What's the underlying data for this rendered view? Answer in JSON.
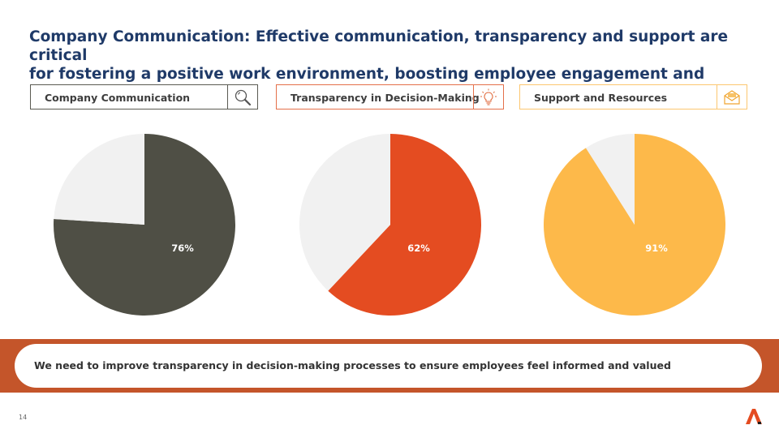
{
  "title": {
    "line1": "Company Communication: Effective communication, transparency and support are critical",
    "line2": "for fostering a positive work environment, boosting employee engagement and productivity"
  },
  "cards": [
    {
      "label": "Company Communication",
      "icon": "search-icon",
      "color": "#4f4f45",
      "border": "#5a5a52"
    },
    {
      "label": "Transparency in Decision-Making",
      "icon": "lightbulb-icon",
      "color": "#e44c21",
      "border": "#e4704a"
    },
    {
      "label": "Support and Resources",
      "icon": "envelope-icon",
      "color": "#fdb94a",
      "border": "#fcc770"
    }
  ],
  "chart_data": [
    {
      "type": "pie",
      "categories": [
        "",
        ""
      ],
      "values": [
        76,
        24
      ],
      "data_labels": [
        "76%"
      ],
      "colors": [
        "#4f4f45",
        "#f1f1f1"
      ]
    },
    {
      "type": "pie",
      "categories": [
        "",
        ""
      ],
      "values": [
        62,
        38
      ],
      "data_labels": [
        "62%"
      ],
      "colors": [
        "#e44c21",
        "#f1f1f1"
      ]
    },
    {
      "type": "pie",
      "categories": [
        "",
        ""
      ],
      "values": [
        91,
        9
      ],
      "data_labels": [
        "91%"
      ],
      "colors": [
        "#fdb94a",
        "#f1f1f1"
      ]
    }
  ],
  "banner": {
    "text": "We need to improve transparency in decision-making processes to ensure employees feel informed and valued",
    "color": "#c4552a"
  },
  "footer": {
    "page_number": "14"
  }
}
